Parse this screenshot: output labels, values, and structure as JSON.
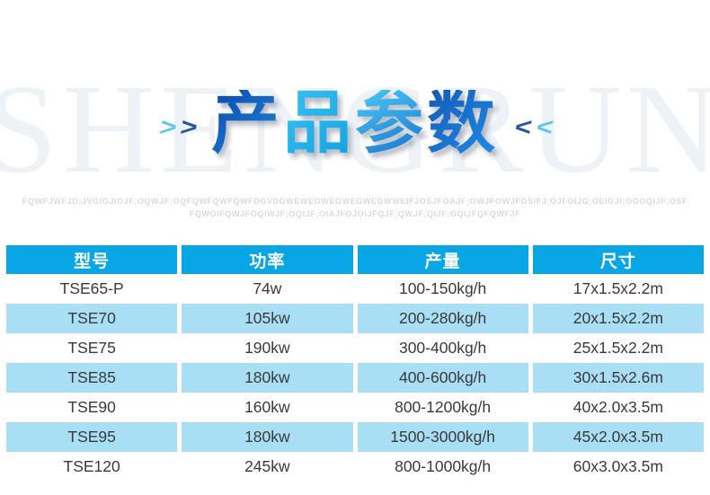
{
  "watermark": "SHENGRUN",
  "title": {
    "chars": [
      "产",
      "品",
      "参",
      "数"
    ],
    "chevrons": [
      ">",
      ">",
      "<",
      "<"
    ]
  },
  "subtext": {
    "line1": "FQWFJWFJD;JVGIGJIOJF;OQWJF;OQFQWFQWFQWFDGVDGWEWEGWEGWEGWEGWWEIFJOSJFOAJF;OWJFOWJFOSIFJ;OJFOIJG;OEIGJI;OGOQIJF;OSF",
    "line2": "FQWOIFQWJFOQIWJF;OQIJF;OIAJFOJOIJFQJF;QWJF;QIJF;OQIJFQFQWFJF"
  },
  "colors": {
    "header_blue": "#08a6e4",
    "row_light_blue": "#a9dff5",
    "title_blue_dark": "#0d4fb5",
    "title_blue_light": "#49c6f3",
    "chevron_light": "#5fc8ec",
    "chevron_dark": "#29549f"
  },
  "table": {
    "headers": [
      "型号",
      "功率",
      "产量",
      "尺寸"
    ],
    "rows": [
      [
        "TSE65-P",
        "74w",
        "100-150kg/h",
        "17x1.5x2.2m"
      ],
      [
        "TSE70",
        "105kw",
        "200-280kg/h",
        "20x1.5x2.2m"
      ],
      [
        "TSE75",
        "190kw",
        "300-400kg/h",
        "25x1.5x2.2m"
      ],
      [
        "TSE85",
        "180kw",
        "400-600kg/h",
        "30x1.5x2.6m"
      ],
      [
        "TSE90",
        "160kw",
        "800-1200kg/h",
        "40x2.0x3.5m"
      ],
      [
        "TSE95",
        "180kw",
        "1500-3000kg/h",
        "45x2.0x3.5m"
      ],
      [
        "TSE120",
        "245kw",
        "800-1000kg/h",
        "60x3.0x3.5m"
      ]
    ]
  }
}
